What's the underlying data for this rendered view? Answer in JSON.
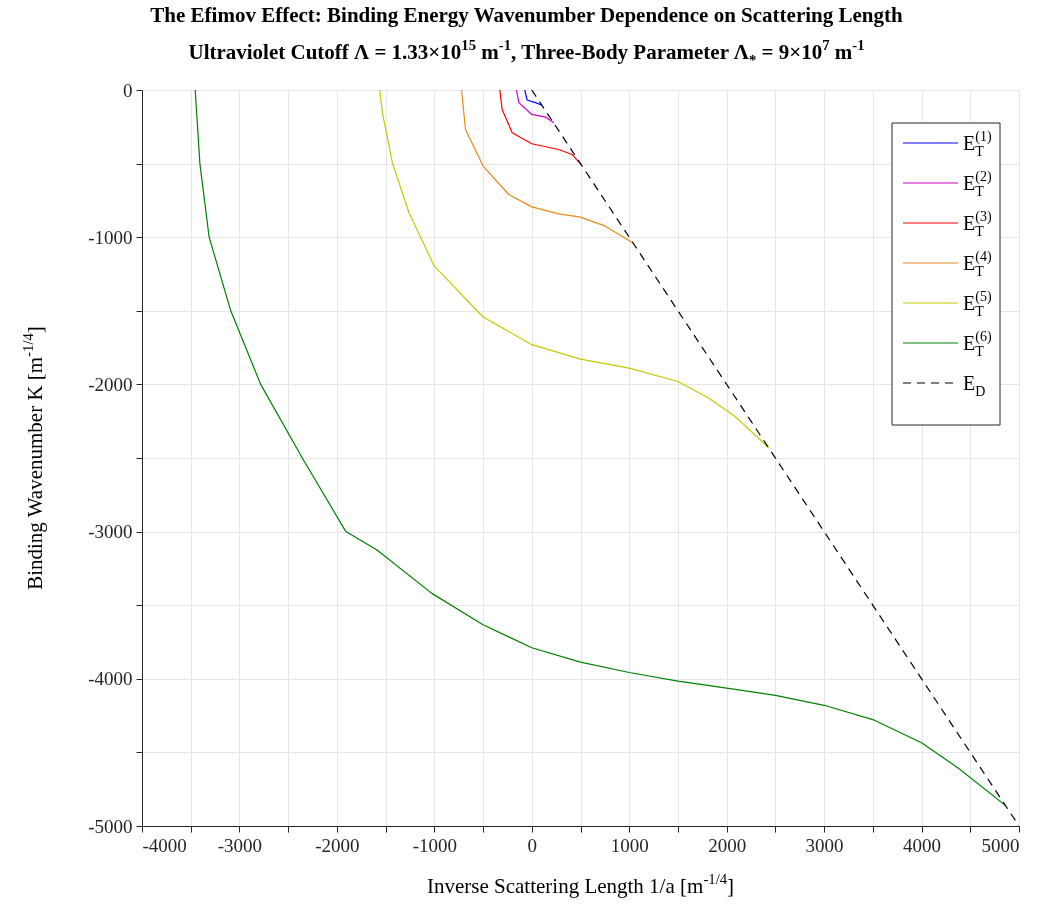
{
  "chart_data": {
    "type": "line",
    "title": "The Efimov Effect: Binding Energy Wavenumber Dependence on Scattering Length",
    "subtitle": "Ultraviolet Cutoff Λ = 1.33×10$^{15}$ m$^{-1}$, Three-Body Parameter Λ$_{*}$ = 9×10$^{7}$ m$^{-1}$",
    "xlabel": "Inverse Scattering Length 1/a [m$^{-1/4}$]",
    "ylabel": "Binding Wavenumber K [m$^{-1/4}$]",
    "xlim": [
      -4000,
      5000
    ],
    "ylim": [
      -5000,
      0
    ],
    "xticks": [
      -4000,
      {
        "value": -3500,
        "label": null
      },
      -3000,
      {
        "value": -2500,
        "label": null
      },
      -2000,
      {
        "value": -1500,
        "label": null
      },
      -1000,
      {
        "value": -500,
        "label": null
      },
      0,
      {
        "value": 500,
        "label": null
      },
      1000,
      {
        "value": 1500,
        "label": null
      },
      2000,
      {
        "value": 2500,
        "label": null
      },
      3000,
      {
        "value": 3500,
        "label": null
      },
      4000,
      {
        "value": 4500,
        "label": null
      },
      5000
    ],
    "yticks": [
      -5000,
      {
        "value": -4500,
        "label": null
      },
      -4000,
      {
        "value": -3500,
        "label": null
      },
      -3000,
      {
        "value": -2500,
        "label": null
      },
      -2000,
      {
        "value": -1500,
        "label": null
      },
      -1000,
      {
        "value": -500,
        "label": null
      },
      0
    ],
    "grid": true,
    "legend": "top right",
    "series": [
      {
        "name": "E$_{T}$$^{(1)}$",
        "color": "#0000ff",
        "line_style": "solid",
        "x": [
          -72,
          -48,
          38,
          106
        ],
        "values": [
          0,
          -68,
          -86,
          -104
        ]
      },
      {
        "name": "E$_{T}$$^{(2)}$",
        "color": "#cc00cc",
        "line_style": "solid",
        "x": [
          -157,
          -133,
          0,
          140,
          225
        ],
        "values": [
          0,
          -86,
          -166,
          -184,
          -222
        ]
      },
      {
        "name": "E$_{T}$$^{(3)}$",
        "color": "#ff0000",
        "line_style": "solid",
        "x": [
          -328,
          -304,
          -201,
          0,
          277,
          413,
          510
        ],
        "values": [
          0,
          -132,
          -290,
          -365,
          -404,
          -438,
          -510
        ]
      },
      {
        "name": "E$_{T}$$^{(4)}$",
        "color": "#e8891e",
        "line_style": "solid",
        "x": [
          -721,
          -680,
          -500,
          -236,
          0,
          277,
          500,
          755,
          1040
        ],
        "values": [
          0,
          -268,
          -517,
          -710,
          -794,
          -841,
          -864,
          -925,
          -1040
        ]
      },
      {
        "name": "E$_{T}$$^{(5)}$",
        "color": "#c8c800",
        "line_style": "solid",
        "x": [
          -1561,
          -1533,
          -1431,
          -1260,
          -1000,
          -500,
          0,
          500,
          1000,
          1500,
          1814,
          2087,
          2430
        ],
        "values": [
          0,
          -154,
          -494,
          -834,
          -1197,
          -1542,
          -1730,
          -1828,
          -1889,
          -1980,
          -2093,
          -2218,
          -2430
        ]
      },
      {
        "name": "E$_{T}$$^{(6)}$",
        "color": "#008000",
        "line_style": "solid",
        "x": [
          -3454,
          -3406,
          -3311,
          -3089,
          -2782,
          -2355,
          -1908,
          -1588,
          -1029,
          -500,
          0,
          500,
          1000,
          1500,
          2000,
          2500,
          3000,
          3500,
          4000,
          4382,
          4860
        ],
        "values": [
          0,
          -500,
          -1000,
          -1500,
          -2000,
          -2500,
          -3000,
          -3125,
          -3418,
          -3633,
          -3789,
          -3887,
          -3957,
          -4016,
          -4063,
          -4113,
          -4180,
          -4277,
          -4434,
          -4609,
          -4860
        ]
      },
      {
        "name": "E$_{D}$",
        "color": "#000000",
        "line_style": "dashed",
        "x": [
          0,
          5000
        ],
        "values": [
          0,
          -5000
        ]
      }
    ]
  }
}
